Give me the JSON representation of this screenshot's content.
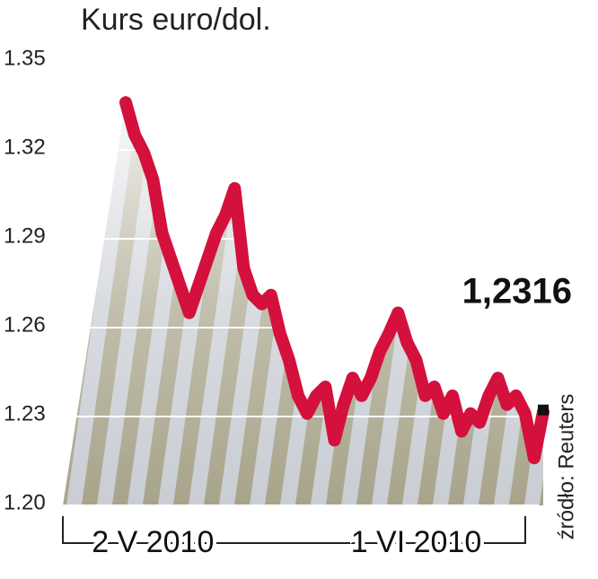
{
  "chart_data": {
    "type": "line",
    "title": "Kurs euro/dol.",
    "source": "źródło: Reuters",
    "x": [
      null,
      null,
      null,
      "2 V 2010",
      null,
      null,
      null,
      null,
      null,
      null,
      null,
      null,
      null,
      null,
      null,
      null,
      null,
      null,
      null,
      null,
      null,
      null,
      null,
      null,
      null,
      null,
      null,
      null,
      null,
      null,
      null,
      null,
      "1 VI 2010",
      null,
      null,
      null,
      null,
      null,
      null,
      null,
      null,
      null,
      null,
      null,
      null,
      null,
      null
    ],
    "series": [
      {
        "color": "#d4103c",
        "values": [
          1.336,
          1.325,
          1.319,
          1.31,
          1.292,
          1.283,
          1.274,
          1.265,
          1.274,
          1.283,
          1.292,
          1.298,
          1.307,
          1.28,
          1.271,
          1.268,
          1.271,
          1.258,
          1.249,
          1.237,
          1.231,
          1.237,
          1.24,
          1.222,
          1.234,
          1.243,
          1.237,
          1.243,
          1.252,
          1.258,
          1.265,
          1.255,
          1.249,
          1.237,
          1.24,
          1.231,
          1.237,
          1.225,
          1.231,
          1.228,
          1.237,
          1.243,
          1.234,
          1.237,
          1.231,
          1.216,
          1.2316
        ],
        "value_labels": [
          null,
          null,
          null,
          null,
          null,
          null,
          null,
          null,
          null,
          null,
          null,
          null,
          null,
          null,
          null,
          null,
          null,
          null,
          null,
          null,
          null,
          null,
          null,
          null,
          null,
          null,
          null,
          null,
          null,
          null,
          null,
          null,
          null,
          null,
          null,
          null,
          null,
          null,
          null,
          null,
          null,
          null,
          null,
          null,
          null,
          null,
          "1,2316"
        ]
      }
    ],
    "ylim": [
      1.2,
      1.35
    ],
    "yticks": [
      {
        "value": 1.2,
        "label": "1.20"
      },
      1.23,
      1.26,
      1.29,
      1.32,
      1.35
    ],
    "grid": true
  }
}
